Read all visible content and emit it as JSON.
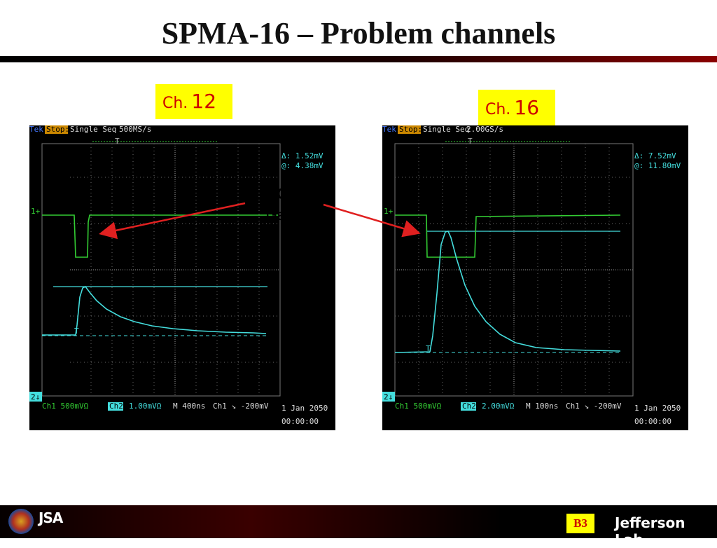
{
  "slide": {
    "title": "SPMA-16 – Problem channels",
    "gate_label_line1": "200 ns",
    "gate_label_line2": "Gate",
    "page_badge": "B3",
    "footer_logo_left": "JSA",
    "footer_logo_right": "Jefferson Lab"
  },
  "colors": {
    "label_bg": "#ffff00",
    "label_text": "#cc0000",
    "scope_bg": "#000000",
    "ch1_trace": "#33cc33",
    "ch2_trace": "#44dddd",
    "arrow": "#e02020"
  },
  "scopes": [
    {
      "label_prefix": "Ch.",
      "label_number": "12",
      "brand": "Tek",
      "state": "Stop:",
      "mode": "Single Seq",
      "rate": "500MS/s",
      "trig_marker": "T",
      "cursor_delta": "Δ: 1.52mV",
      "cursor_at": "@: 4.38mV",
      "ch1_marker": "1+",
      "ch2_marker": "2↓",
      "ch1_scale": "Ch1   500mVΩ",
      "ch2_name": "Ch2",
      "ch2_scale": "1.00mVΩ",
      "timebase": "M  400ns",
      "trigger": "Ch1  ↘  -200mV",
      "date": "1 Jan 2050",
      "time": "00:00:00"
    },
    {
      "label_prefix": "Ch.",
      "label_number": "16",
      "brand": "Tek",
      "state": "Stop:",
      "mode": "Single Seq",
      "rate": "2.00GS/s",
      "trig_marker": "T",
      "cursor_delta": "Δ: 7.52mV",
      "cursor_at": "@: 11.80mV",
      "ch1_marker": "1+",
      "ch2_marker": "2↓",
      "ch1_scale": "Ch1   500mVΩ",
      "ch2_name": "Ch2",
      "ch2_scale": "2.00mVΩ",
      "timebase": "M  100ns",
      "trigger": "Ch1  ↘  -200mV",
      "date": "1 Jan 2050",
      "time": "00:00:00"
    }
  ]
}
